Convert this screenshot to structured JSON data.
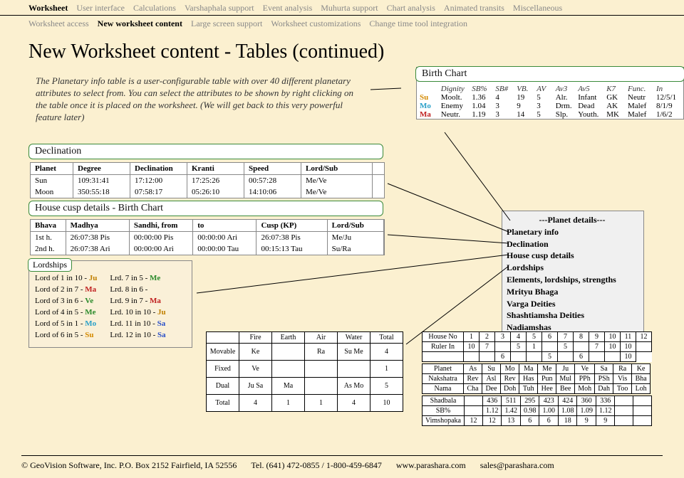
{
  "nav1": [
    "Worksheet",
    "User interface",
    "Calculations",
    "Varshaphala support",
    "Event analysis",
    "Muhurta support",
    "Chart analysis",
    "Animated transits",
    "Miscellaneous"
  ],
  "nav1_active": 0,
  "nav2": [
    "Worksheet access",
    "New worksheet content",
    "Large screen support",
    "Worksheet customizations",
    "Change time tool integration"
  ],
  "nav2_active": 1,
  "page_title": "New Worksheet content - Tables (continued)",
  "description": "The Planetary info table is a user-configurable table with over 40 different planetary attributes to select from. You can select the attributes to be shown by right clicking on the table once it is placed on the worksheet. (We will get back to this very powerful feature later)",
  "birth_chart": {
    "title": "Birth Chart",
    "headers": [
      "Dignity",
      "SB%",
      "SB#",
      "VB.",
      "AV",
      "Av3",
      "Av5",
      "K7",
      "Func.",
      "In"
    ],
    "rows": [
      {
        "p": "Su",
        "cls": "su",
        "v": [
          "Moolt.",
          "1.36",
          "4",
          "19",
          "5",
          "Alr.",
          "Infant",
          "GK",
          "Neutr",
          "12/5/1"
        ]
      },
      {
        "p": "Mo",
        "cls": "mo",
        "v": [
          "Enemy",
          "1.04",
          "3",
          "9",
          "3",
          "Drm.",
          "Dead",
          "AK",
          "Malef",
          "8/1/9"
        ]
      },
      {
        "p": "Ma",
        "cls": "ma",
        "v": [
          "Neutr.",
          "1.19",
          "3",
          "14",
          "5",
          "Slp.",
          "Youth.",
          "MK",
          "Malef",
          "1/6/2"
        ]
      }
    ]
  },
  "declination": {
    "title": "Declination",
    "headers": [
      "Planet",
      "Degree",
      "Declination",
      "Kranti",
      "Speed",
      "Lord/Sub"
    ],
    "widths": [
      60,
      80,
      80,
      80,
      80,
      100
    ],
    "rows": [
      [
        "Sun",
        "109:31:41",
        "17:12:00",
        "17:25:26",
        "00:57:28",
        "Me/Ve"
      ],
      [
        "Moon",
        "350:55:18",
        "07:58:17",
        "05:26:10",
        "14:10:06",
        "Me/Ve"
      ]
    ]
  },
  "cusp": {
    "title": "House cusp details - Birth Chart",
    "headers": [
      "Bhava",
      "Madhya",
      "Sandhi, from",
      "to",
      "Cusp (KP)",
      "Lord/Sub"
    ],
    "widths": [
      50,
      90,
      90,
      90,
      100,
      80
    ],
    "rows": [
      [
        "1st h.",
        "26:07:38 Pis",
        "00:00:00 Pis",
        "00:00:00 Ari",
        "26:07:38 Pis",
        "Me/Ju"
      ],
      [
        "2nd h.",
        "26:07:38 Ari",
        "00:00:00 Ari",
        "00:00:00 Tau",
        "00:15:13 Tau",
        "Su/Ra"
      ]
    ]
  },
  "lordships": {
    "title": "Lordships",
    "left": [
      [
        "Lord of 1 in 10 - ",
        "Ju",
        "ju"
      ],
      [
        "Lord of 2 in 7 - ",
        "Ma",
        "ma"
      ],
      [
        "Lord of 3 in 6 - ",
        "Ve",
        "ve"
      ],
      [
        "Lord of 4 in 5 - ",
        "Me",
        "me"
      ],
      [
        "Lord of 5 in 1 - ",
        "Mo",
        "mo"
      ],
      [
        "Lord of 6 in 5 - ",
        "Su",
        "su"
      ]
    ],
    "right": [
      [
        "Lrd. 7 in 5 - ",
        "Me",
        "me"
      ],
      [
        "Lrd. 8 in 6 - ",
        "",
        ""
      ],
      [
        "Lrd. 9 in 7 - ",
        "Ma",
        "ma"
      ],
      [
        "Lrd. 10 in 10 - ",
        "Ju",
        "ju"
      ],
      [
        "Lrd. 11 in 10 - ",
        "Sa",
        "sa"
      ],
      [
        "Lrd. 12 in 10 - ",
        "Sa",
        "sa"
      ]
    ]
  },
  "menu": {
    "title": "---Planet details---",
    "items": [
      "Planetary info",
      "Declination",
      "House cusp details",
      "Lordships",
      "Elements, lordships, strengths",
      "Mrityu Bhaga",
      "Varga Deities",
      "Shashtiamsha Deities",
      "Nadiamshas"
    ]
  },
  "elements": {
    "cols": [
      "",
      "Fire",
      "Earth",
      "Air",
      "Water",
      "Total"
    ],
    "rows": [
      [
        "Movable",
        "Ke",
        "",
        "Ra",
        "Su Me",
        "4"
      ],
      [
        "Fixed",
        "Ve",
        "",
        "",
        "",
        "1"
      ],
      [
        "Dual",
        "Ju Sa",
        "Ma",
        "",
        "As Mo",
        "5"
      ],
      [
        "Total",
        "4",
        "1",
        "1",
        "4",
        "10"
      ]
    ]
  },
  "strengths": {
    "r1h": [
      "House No",
      "1",
      "2",
      "3",
      "4",
      "5",
      "6",
      "7",
      "8",
      "9",
      "10",
      "11",
      "12"
    ],
    "r1": [
      "Ruler In",
      "10",
      "7",
      "",
      "5",
      "1",
      "",
      "5",
      "",
      "7",
      "10",
      "10",
      ""
    ],
    "r1b": [
      "",
      "",
      "",
      "6",
      "",
      "",
      "5",
      "",
      "6",
      "",
      "",
      "10"
    ],
    "r2h": [
      "Planet",
      "As",
      "Su",
      "Mo",
      "Ma",
      "Me",
      "Ju",
      "Ve",
      "Sa",
      "Ra",
      "Ke"
    ],
    "r2a": [
      "Nakshatra",
      "Rev",
      "Asl",
      "Rev",
      "Has",
      "Pun",
      "Mul",
      "PPh",
      "PSh",
      "Vis",
      "Bha"
    ],
    "r2b": [
      "Nama",
      "Cha",
      "Dee",
      "Doh",
      "Tuh",
      "Hee",
      "Bee",
      "Moh",
      "Dah",
      "Too",
      "Loh"
    ],
    "r3a": [
      "Shadbala",
      "",
      "436",
      "511",
      "295",
      "423",
      "424",
      "360",
      "336",
      "",
      ""
    ],
    "r3b": [
      "SB%",
      "",
      "1.12",
      "1.42",
      "0.98",
      "1.00",
      "1.08",
      "1.09",
      "1.12",
      "",
      ""
    ],
    "r3c": [
      "Vimshopaka",
      "12",
      "12",
      "13",
      "6",
      "6",
      "18",
      "9",
      "9",
      "",
      ""
    ]
  },
  "footer": {
    "copyright": "© GeoVision Software, Inc. P.O. Box 2152 Fairfield, IA 52556",
    "tel": "Tel. (641) 472-0855 / 1-800-459-6847",
    "web": "www.parashara.com",
    "email": "sales@parashara.com"
  }
}
